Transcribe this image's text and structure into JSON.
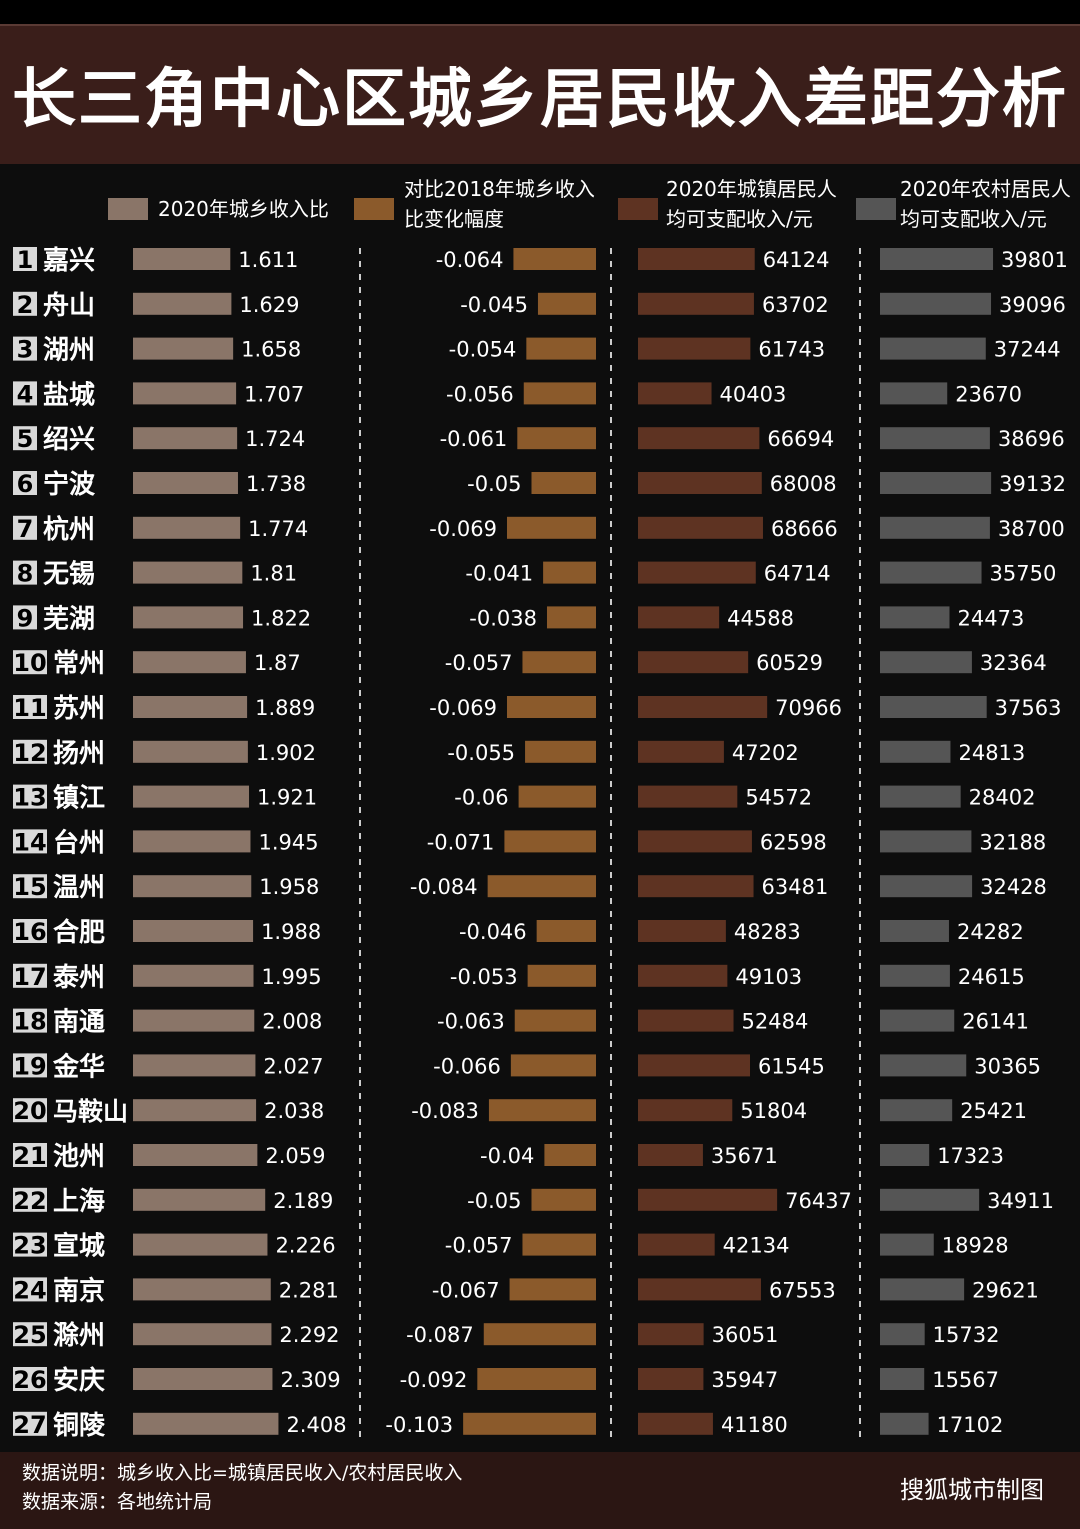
{
  "title": "长三角中心区城乡居民收入差距分析",
  "legend": [
    {
      "label": "2020年城乡收入比",
      "color": "#8a7568"
    },
    {
      "label": "对比2018年城乡收入比变化幅度",
      "color": "#8b5a2b"
    },
    {
      "label": "2020年城镇居民人均可支配收入/元",
      "color": "#5e3322"
    },
    {
      "label": "2020年农村居民人均可支配收入/元",
      "color": "#555555"
    }
  ],
  "legend_lines": {
    "l1": "2020年城乡收入比",
    "l2a": "对比2018年城乡收入",
    "l2b": "比变化幅度",
    "l3a": "2020年城镇居民人",
    "l3b": "均可支配收入/元",
    "l4a": "2020年农村居民人",
    "l4b": "均可支配收入/元"
  },
  "chart_data": {
    "type": "bar",
    "categories": [
      "嘉兴",
      "舟山",
      "湖州",
      "盐城",
      "绍兴",
      "宁波",
      "杭州",
      "无锡",
      "芜湖",
      "常州",
      "苏州",
      "扬州",
      "镇江",
      "台州",
      "温州",
      "合肥",
      "泰州",
      "南通",
      "金华",
      "马鞍山",
      "池州",
      "上海",
      "宣城",
      "南京",
      "滁州",
      "安庆",
      "铜陵"
    ],
    "ranks": [
      "1",
      "2",
      "3",
      "4",
      "5",
      "6",
      "7",
      "8",
      "9",
      "10",
      "11",
      "12",
      "13",
      "14",
      "15",
      "16",
      "17",
      "18",
      "19",
      "20",
      "21",
      "22",
      "23",
      "24",
      "25",
      "26",
      "27"
    ],
    "series": [
      {
        "name": "2020年城乡收入比",
        "color": "#8a7568",
        "values": [
          1.611,
          1.629,
          1.658,
          1.707,
          1.724,
          1.738,
          1.774,
          1.81,
          1.822,
          1.87,
          1.889,
          1.902,
          1.921,
          1.945,
          1.958,
          1.988,
          1.995,
          2.008,
          2.027,
          2.038,
          2.059,
          2.189,
          2.226,
          2.281,
          2.292,
          2.309,
          2.408
        ],
        "labels": [
          "1.611",
          "1.629",
          "1.658",
          "1.707",
          "1.724",
          "1.738",
          "1.774",
          "1.81",
          "1.822",
          "1.87",
          "1.889",
          "1.902",
          "1.921",
          "1.945",
          "1.958",
          "1.988",
          "1.995",
          "2.008",
          "2.027",
          "2.038",
          "2.059",
          "2.189",
          "2.226",
          "2.281",
          "2.292",
          "2.309",
          "2.408"
        ]
      },
      {
        "name": "对比2018年城乡收入比变化幅度",
        "color": "#8b5a2b",
        "values": [
          -0.064,
          -0.045,
          -0.054,
          -0.056,
          -0.061,
          -0.05,
          -0.069,
          -0.041,
          -0.038,
          -0.057,
          -0.069,
          -0.055,
          -0.06,
          -0.071,
          -0.084,
          -0.046,
          -0.053,
          -0.063,
          -0.066,
          -0.083,
          -0.04,
          -0.05,
          -0.057,
          -0.067,
          -0.087,
          -0.092,
          -0.103
        ],
        "labels": [
          "-0.064",
          "-0.045",
          "-0.054",
          "-0.056",
          "-0.061",
          "-0.05",
          "-0.069",
          "-0.041",
          "-0.038",
          "-0.057",
          "-0.069",
          "-0.055",
          "-0.06",
          "-0.071",
          "-0.084",
          "-0.046",
          "-0.053",
          "-0.063",
          "-0.066",
          "-0.083",
          "-0.04",
          "-0.05",
          "-0.057",
          "-0.067",
          "-0.087",
          "-0.092",
          "-0.103"
        ]
      },
      {
        "name": "2020年城镇居民人均可支配收入/元",
        "color": "#5e3322",
        "values": [
          64124,
          63702,
          61743,
          40403,
          66694,
          68008,
          68666,
          64714,
          44588,
          60529,
          70966,
          47202,
          54572,
          62598,
          63481,
          48283,
          49103,
          52484,
          61545,
          51804,
          35671,
          76437,
          42134,
          67553,
          36051,
          35947,
          41180
        ],
        "labels": [
          "64124",
          "63702",
          "61743",
          "40403",
          "66694",
          "68008",
          "68666",
          "64714",
          "44588",
          "60529",
          "70966",
          "47202",
          "54572",
          "62598",
          "63481",
          "48283",
          "49103",
          "52484",
          "61545",
          "51804",
          "35671",
          "76437",
          "42134",
          "67553",
          "36051",
          "35947",
          "41180"
        ]
      },
      {
        "name": "2020年农村居民人均可支配收入/元",
        "color": "#555555",
        "values": [
          39801,
          39096,
          37244,
          23670,
          38696,
          39132,
          38700,
          35750,
          24473,
          32364,
          37563,
          24813,
          28402,
          32188,
          32428,
          24282,
          24615,
          26141,
          30365,
          25421,
          17323,
          34911,
          18928,
          29621,
          15732,
          15567,
          17102
        ],
        "labels": [
          "39801",
          "39096",
          "37244",
          "23670",
          "38696",
          "39132",
          "38700",
          "35750",
          "24473",
          "32364",
          "37563",
          "24813",
          "28402",
          "32188",
          "32428",
          "24282",
          "24615",
          "26141",
          "30365",
          "25421",
          "17323",
          "34911",
          "18928",
          "29621",
          "15732",
          "15567",
          "17102"
        ]
      }
    ]
  },
  "footer": {
    "note": "数据说明：城乡收入比=城镇居民收入/农村居民收入",
    "source": "数据来源：各地统计局",
    "credit": "搜狐城市制图"
  }
}
